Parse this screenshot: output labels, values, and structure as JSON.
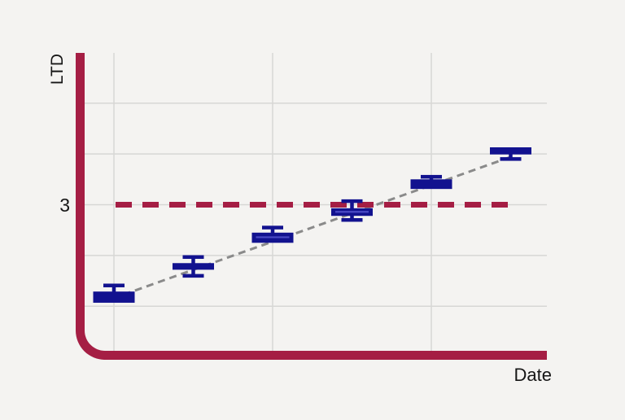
{
  "colors": {
    "background": "#f4f3f1",
    "crimson": "#a51e44",
    "navy": "#12128f",
    "median_blue": "#4a4ac4",
    "gridline": "#d7d7d5",
    "trend_gray": "#8a8a8a",
    "text": "#161616"
  },
  "chart_data": {
    "type": "boxplot",
    "title": "",
    "xlabel": "Date",
    "ylabel": "LTD",
    "y_tick": {
      "value": 3,
      "label": "3"
    },
    "x_tick_labels": [],
    "ylim": [
      0.1,
      6.0
    ],
    "xlim": [
      0.5,
      6.5
    ],
    "grid": {
      "on": true,
      "horizontal_values": [
        1,
        2,
        3,
        4,
        5
      ],
      "vertical_x": [
        1,
        3,
        5
      ]
    },
    "threshold_line": {
      "value": 3,
      "style": "dashed",
      "color": "#a51e44"
    },
    "trend_line": {
      "style": "dashed",
      "color": "#8a8a8a",
      "x1": 1.12,
      "v1": 1.23,
      "x2": 6.0,
      "v2": 3.94
    },
    "points": [
      {
        "x": 1,
        "value": 1.18,
        "box_low": 1.07,
        "box_high": 1.29,
        "median": null,
        "whisker_low": null,
        "whisker_high": 1.41
      },
      {
        "x": 2,
        "value": 1.79,
        "box_low": 1.72,
        "box_high": 1.85,
        "median": null,
        "whisker_low": 1.6,
        "whisker_high": 1.97
      },
      {
        "x": 3,
        "value": 2.35,
        "box_low": 2.25,
        "box_high": 2.45,
        "median": 2.36,
        "whisker_low": null,
        "whisker_high": 2.55
      },
      {
        "x": 4,
        "value": 2.86,
        "box_low": 2.78,
        "box_high": 2.93,
        "median": 2.86,
        "whisker_low": 2.7,
        "whisker_high": 3.07
      },
      {
        "x": 5,
        "value": 3.41,
        "box_low": 3.31,
        "box_high": 3.5,
        "median": null,
        "whisker_low": null,
        "whisker_high": 3.55
      },
      {
        "x": 6,
        "value": 4.06,
        "box_low": 3.99,
        "box_high": 4.13,
        "median": null,
        "whisker_low": 3.9,
        "whisker_high": null
      }
    ],
    "legend": null
  }
}
